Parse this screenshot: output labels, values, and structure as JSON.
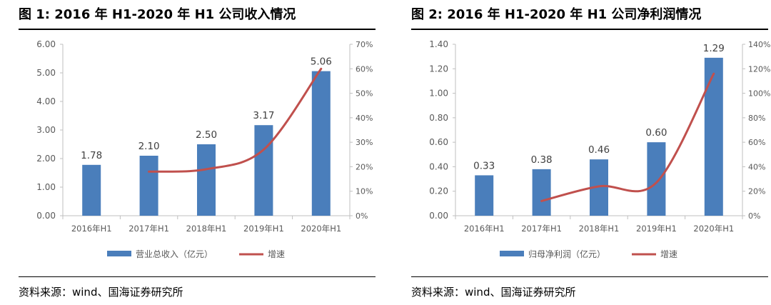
{
  "panels": [
    {
      "title": "图 1: 2016 年 H1-2020 年 H1 公司收入情况",
      "source": "资料来源：wind、国海证券研究所"
    },
    {
      "title": "图 2: 2016 年 H1-2020 年 H1 公司净利润情况",
      "source": "资料来源：wind、国海证券研究所"
    }
  ],
  "colors": {
    "bar": "#4a7ebb",
    "line": "#c0504d",
    "axis": "#bfbfbf",
    "text": "#595959"
  },
  "chart_data": [
    {
      "type": "bar",
      "title": "",
      "categories": [
        "2016年H1",
        "2017年H1",
        "2018年H1",
        "2019年H1",
        "2020年H1"
      ],
      "series": [
        {
          "name": "营业总收入（亿元）",
          "type": "bar",
          "axis": "left",
          "values": [
            1.78,
            2.1,
            2.5,
            3.17,
            5.06
          ],
          "labels": [
            "1.78",
            "2.10",
            "2.50",
            "3.17",
            "5.06"
          ]
        },
        {
          "name": "增速",
          "type": "line",
          "axis": "right",
          "values": [
            null,
            18,
            19,
            27,
            60
          ]
        }
      ],
      "ylim": [
        0,
        6
      ],
      "yticks": [
        "0.00",
        "1.00",
        "2.00",
        "3.00",
        "4.00",
        "5.00",
        "6.00"
      ],
      "y2lim": [
        0,
        70
      ],
      "y2ticks": [
        "0%",
        "10%",
        "20%",
        "30%",
        "40%",
        "50%",
        "60%",
        "70%"
      ],
      "legend": "bottom",
      "grid": false
    },
    {
      "type": "bar",
      "title": "",
      "categories": [
        "2016年H1",
        "2017年H1",
        "2018年H1",
        "2019年H1",
        "2020年H1"
      ],
      "series": [
        {
          "name": "归母净利润（亿元）",
          "type": "bar",
          "axis": "left",
          "values": [
            0.33,
            0.38,
            0.46,
            0.6,
            1.29
          ],
          "labels": [
            "0.33",
            "0.38",
            "0.46",
            "0.60",
            "1.29"
          ]
        },
        {
          "name": "增速",
          "type": "line",
          "axis": "right",
          "values": [
            null,
            12,
            24,
            27,
            116
          ]
        }
      ],
      "ylim": [
        0,
        1.4
      ],
      "yticks": [
        "0.00",
        "0.20",
        "0.40",
        "0.60",
        "0.80",
        "1.00",
        "1.20",
        "1.40"
      ],
      "y2lim": [
        0,
        140
      ],
      "y2ticks": [
        "0%",
        "20%",
        "40%",
        "60%",
        "80%",
        "100%",
        "120%",
        "140%"
      ],
      "legend": "bottom",
      "grid": false
    }
  ]
}
